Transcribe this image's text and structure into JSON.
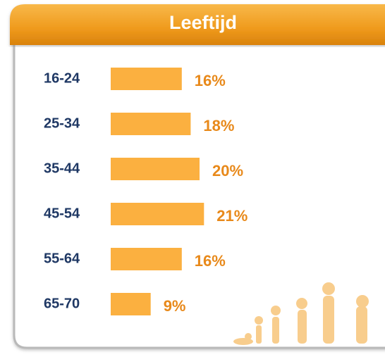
{
  "chart_data": {
    "type": "bar",
    "orientation": "horizontal",
    "title": "Leeftijd",
    "categories": [
      "16-24",
      "25-34",
      "35-44",
      "45-54",
      "55-64",
      "65-70"
    ],
    "values": [
      16,
      18,
      20,
      21,
      16,
      9
    ],
    "value_labels": [
      "16%",
      "18%",
      "20%",
      "21%",
      "16%",
      "9%"
    ],
    "color": "#fbb040"
  }
}
